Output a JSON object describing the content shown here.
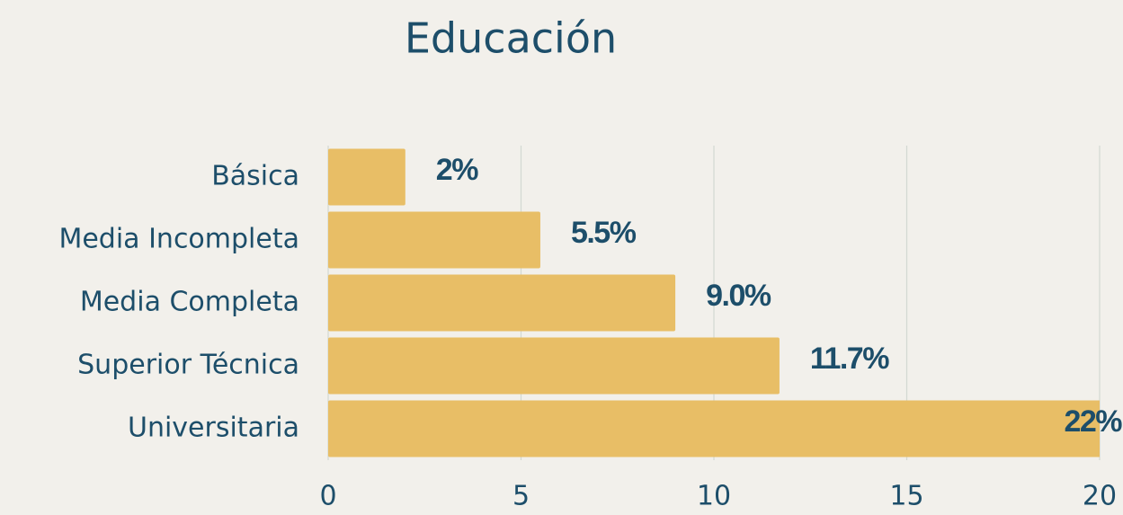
{
  "chart_data": {
    "type": "barh",
    "title": "Educación",
    "categories": [
      "Básica",
      "Media Incompleta",
      "Media Completa",
      "Superior Técnica",
      "Universitaria"
    ],
    "values": [
      2,
      5.5,
      9.0,
      11.7,
      22
    ],
    "value_labels": [
      "2%",
      "5.5%",
      "9.0%",
      "11.7%",
      "22%"
    ],
    "color": "#e8be66",
    "xlim": [
      0,
      20
    ],
    "xticks": [
      0,
      5,
      10,
      15,
      20
    ],
    "grid": true
  }
}
